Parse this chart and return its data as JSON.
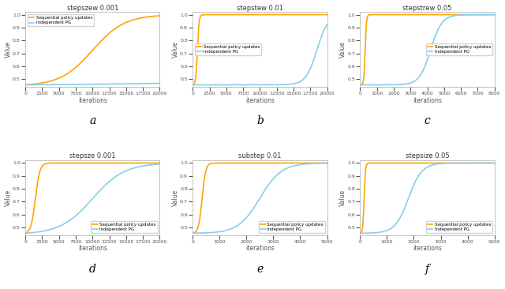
{
  "titles_top": [
    "stepszew 0.001",
    "stepstew 0.01",
    "stepstrew 0.05"
  ],
  "titles_bot": [
    "stepsze 0.001",
    "substep 0.01",
    "stepsize 0.05"
  ],
  "xlabel": "iterations",
  "ylabel": "Value",
  "subplot_labels": [
    "a",
    "b",
    "c",
    "d",
    "e",
    "f"
  ],
  "orange_color": "#FFA500",
  "blue_color": "#87CEEB",
  "legend_labels": [
    "Sequential policy updates",
    "Independent PG"
  ],
  "top_row": {
    "xmax": [
      20000,
      20000,
      8000
    ],
    "ymin": 0.44,
    "ymax": 1.02,
    "seq": [
      {
        "inflection": 10000,
        "steepness": 0.00042,
        "ystart": 0.455
      },
      {
        "inflection": 700,
        "steepness": 0.008,
        "ystart": 0.455
      },
      {
        "inflection": 300,
        "steepness": 0.025,
        "ystart": 0.455
      }
    ],
    "ind": [
      {
        "inflection": 100000,
        "steepness": 4e-05,
        "ystart": 0.455
      },
      {
        "inflection": 18500,
        "steepness": 0.0012,
        "ystart": 0.455
      },
      {
        "inflection": 4200,
        "steepness": 0.003,
        "ystart": 0.455
      }
    ]
  },
  "bot_row": {
    "xmax": [
      20000,
      5000,
      5000
    ],
    "ymin": 0.44,
    "ymax": 1.02,
    "seq": [
      {
        "inflection": 1500,
        "steepness": 0.003,
        "ystart": 0.455
      },
      {
        "inflection": 350,
        "steepness": 0.015,
        "ystart": 0.455
      },
      {
        "inflection": 150,
        "steepness": 0.04,
        "ystart": 0.455
      }
    ],
    "ind": [
      {
        "inflection": 10000,
        "steepness": 0.00042,
        "ystart": 0.455
      },
      {
        "inflection": 2500,
        "steepness": 0.0025,
        "ystart": 0.455
      },
      {
        "inflection": 1800,
        "steepness": 0.004,
        "ystart": 0.455
      }
    ]
  },
  "legend_locs": {
    "top": [
      "upper left",
      "center left",
      "center right"
    ],
    "bot": [
      "lower right",
      "lower right",
      "lower right"
    ]
  }
}
